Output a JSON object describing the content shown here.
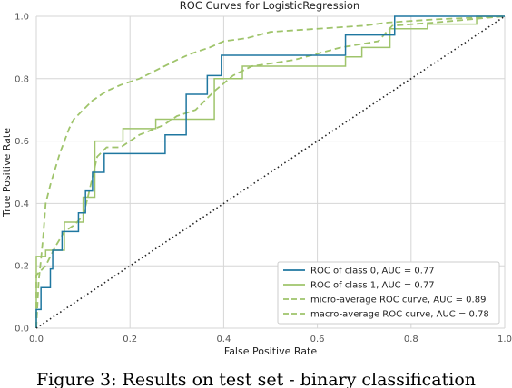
{
  "chart_data": {
    "type": "line",
    "title": "ROC Curves for LogisticRegression",
    "xlabel": "False Positive Rate",
    "ylabel": "True Positive Rate",
    "xlim": [
      0,
      1
    ],
    "ylim": [
      0,
      1
    ],
    "x_ticks": [
      "0.0",
      "0.2",
      "0.4",
      "0.6",
      "0.8",
      "1.0"
    ],
    "y_ticks": [
      "0.0",
      "0.2",
      "0.4",
      "0.6",
      "0.8",
      "1.0"
    ],
    "grid": true,
    "legend_position": "bottom-right",
    "series": [
      {
        "name": "ROC of class 0, AUC = 0.77",
        "color": "#1f77a0",
        "style": "solid",
        "points": [
          [
            0,
            0
          ],
          [
            0,
            0.06
          ],
          [
            0.01,
            0.06
          ],
          [
            0.01,
            0.13
          ],
          [
            0.03,
            0.13
          ],
          [
            0.03,
            0.19
          ],
          [
            0.035,
            0.19
          ],
          [
            0.035,
            0.25
          ],
          [
            0.055,
            0.25
          ],
          [
            0.055,
            0.31
          ],
          [
            0.09,
            0.31
          ],
          [
            0.09,
            0.37
          ],
          [
            0.105,
            0.37
          ],
          [
            0.105,
            0.44
          ],
          [
            0.12,
            0.44
          ],
          [
            0.12,
            0.5
          ],
          [
            0.145,
            0.5
          ],
          [
            0.145,
            0.56
          ],
          [
            0.275,
            0.56
          ],
          [
            0.275,
            0.62
          ],
          [
            0.32,
            0.62
          ],
          [
            0.32,
            0.75
          ],
          [
            0.365,
            0.75
          ],
          [
            0.365,
            0.81
          ],
          [
            0.395,
            0.81
          ],
          [
            0.395,
            0.875
          ],
          [
            0.66,
            0.875
          ],
          [
            0.66,
            0.94
          ],
          [
            0.765,
            0.94
          ],
          [
            0.765,
            1.0
          ],
          [
            1.0,
            1.0
          ]
        ]
      },
      {
        "name": "ROC of class 1, AUC = 0.77",
        "color": "#9fc46b",
        "style": "solid",
        "points": [
          [
            0,
            0
          ],
          [
            0,
            0.23
          ],
          [
            0.02,
            0.23
          ],
          [
            0.02,
            0.25
          ],
          [
            0.06,
            0.25
          ],
          [
            0.06,
            0.34
          ],
          [
            0.1,
            0.34
          ],
          [
            0.1,
            0.42
          ],
          [
            0.125,
            0.42
          ],
          [
            0.125,
            0.6
          ],
          [
            0.185,
            0.6
          ],
          [
            0.185,
            0.64
          ],
          [
            0.255,
            0.64
          ],
          [
            0.255,
            0.67
          ],
          [
            0.38,
            0.67
          ],
          [
            0.38,
            0.8
          ],
          [
            0.44,
            0.8
          ],
          [
            0.44,
            0.84
          ],
          [
            0.66,
            0.84
          ],
          [
            0.66,
            0.87
          ],
          [
            0.695,
            0.87
          ],
          [
            0.695,
            0.9
          ],
          [
            0.755,
            0.9
          ],
          [
            0.755,
            0.96
          ],
          [
            0.835,
            0.96
          ],
          [
            0.835,
            0.975
          ],
          [
            0.94,
            0.975
          ],
          [
            0.94,
            1.0
          ],
          [
            1.0,
            1.0
          ]
        ]
      },
      {
        "name": "micro-average ROC curve, AUC = 0.89",
        "color": "#9fc46b",
        "style": "dashed",
        "points": [
          [
            0,
            0
          ],
          [
            0.005,
            0.15
          ],
          [
            0.01,
            0.22
          ],
          [
            0.015,
            0.3
          ],
          [
            0.02,
            0.4
          ],
          [
            0.03,
            0.46
          ],
          [
            0.04,
            0.51
          ],
          [
            0.05,
            0.56
          ],
          [
            0.06,
            0.6
          ],
          [
            0.07,
            0.64
          ],
          [
            0.08,
            0.67
          ],
          [
            0.1,
            0.7
          ],
          [
            0.12,
            0.73
          ],
          [
            0.15,
            0.76
          ],
          [
            0.18,
            0.78
          ],
          [
            0.22,
            0.8
          ],
          [
            0.26,
            0.83
          ],
          [
            0.3,
            0.86
          ],
          [
            0.33,
            0.88
          ],
          [
            0.37,
            0.9
          ],
          [
            0.4,
            0.92
          ],
          [
            0.45,
            0.93
          ],
          [
            0.5,
            0.95
          ],
          [
            0.6,
            0.96
          ],
          [
            0.7,
            0.97
          ],
          [
            0.75,
            0.98
          ],
          [
            0.85,
            0.99
          ],
          [
            1.0,
            1.0
          ]
        ]
      },
      {
        "name": "macro-average ROC curve, AUC = 0.78",
        "color": "#9fc46b",
        "style": "dashed",
        "points": [
          [
            0,
            0
          ],
          [
            0,
            0.17
          ],
          [
            0.02,
            0.2
          ],
          [
            0.04,
            0.26
          ],
          [
            0.06,
            0.31
          ],
          [
            0.08,
            0.33
          ],
          [
            0.1,
            0.36
          ],
          [
            0.11,
            0.42
          ],
          [
            0.13,
            0.55
          ],
          [
            0.15,
            0.58
          ],
          [
            0.18,
            0.58
          ],
          [
            0.22,
            0.62
          ],
          [
            0.27,
            0.65
          ],
          [
            0.3,
            0.68
          ],
          [
            0.34,
            0.7
          ],
          [
            0.38,
            0.76
          ],
          [
            0.42,
            0.81
          ],
          [
            0.46,
            0.84
          ],
          [
            0.55,
            0.86
          ],
          [
            0.65,
            0.9
          ],
          [
            0.73,
            0.92
          ],
          [
            0.76,
            0.97
          ],
          [
            0.85,
            0.98
          ],
          [
            1.0,
            1.0
          ]
        ]
      },
      {
        "name": "",
        "color": "#222222",
        "style": "dotted",
        "points": [
          [
            0,
            0
          ],
          [
            1,
            1
          ]
        ]
      }
    ]
  },
  "caption": "Figure 3: Results on test set - binary classification"
}
